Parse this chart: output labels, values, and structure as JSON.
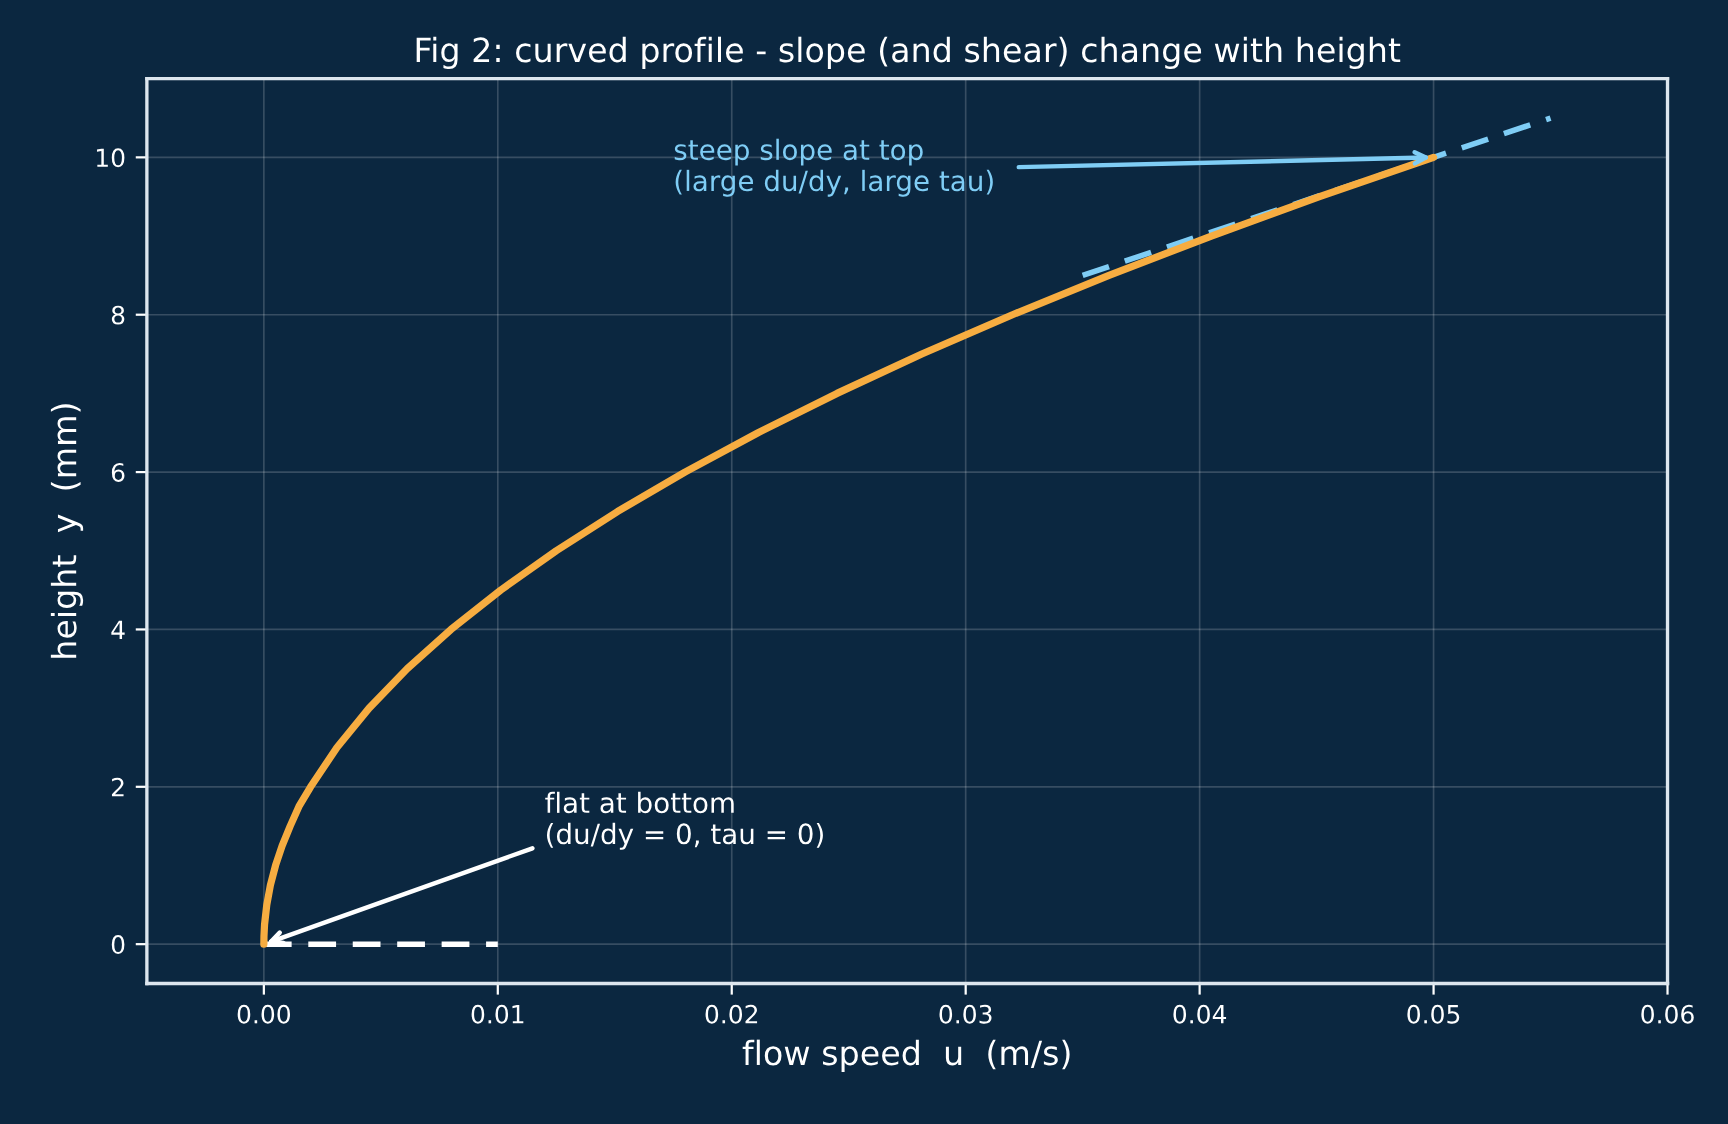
{
  "chart_data": {
    "type": "line",
    "title": "Fig 2: curved profile - slope (and shear) change with height",
    "xlabel": "flow speed  u  (m/s)",
    "ylabel": "height  y  (mm)",
    "series": [
      {
        "color": "#f7ad41",
        "line_style": "solid",
        "x": [
          0,
          5e-06,
          3e-05,
          0.000125,
          0.00028,
          0.0005,
          0.00078,
          0.001125,
          0.0015,
          0.002,
          0.003125,
          0.0045,
          0.006125,
          0.008,
          0.010125,
          0.0125,
          0.015125,
          0.018,
          0.021125,
          0.0245,
          0.028125,
          0.032,
          0.036125,
          0.0405,
          0.045125,
          0.05
        ],
        "values": [
          0,
          0.1,
          0.25,
          0.5,
          0.75,
          1,
          1.25,
          1.5,
          1.75,
          2,
          2.5,
          3,
          3.5,
          4,
          4.5,
          5,
          5.5,
          6,
          6.5,
          7,
          7.5,
          8,
          8.5,
          9,
          9.5,
          10
        ]
      },
      {
        "color": "#ffffff",
        "line_style": "dashed",
        "x": [
          0,
          0.01
        ],
        "values": [
          0,
          0
        ]
      },
      {
        "color": "#7fcdf5",
        "line_style": "dashed",
        "x": [
          0.035,
          0.055
        ],
        "values": [
          8.5,
          10.5
        ]
      }
    ],
    "annotations": [
      {
        "text": "flat at bottom\n(du/dy = 0, tau = 0)",
        "x": 0,
        "y": 0
      },
      {
        "text": "steep slope at top\n(large du/dy, large tau)",
        "x": 0.05,
        "y": 10
      }
    ],
    "xlim": [
      -0.005,
      0.06
    ],
    "ylim": [
      -0.5,
      11
    ],
    "xticks": [
      {
        "value": 0,
        "label": "0.00"
      },
      {
        "value": 0.01,
        "label": "0.01"
      },
      {
        "value": 0.02,
        "label": "0.02"
      },
      {
        "value": 0.03,
        "label": "0.03"
      },
      {
        "value": 0.04,
        "label": "0.04"
      },
      {
        "value": 0.05,
        "label": "0.05"
      },
      {
        "value": 0.06,
        "label": "0.06"
      }
    ],
    "yticks": [
      0,
      2,
      4,
      6,
      8,
      10
    ],
    "grid": true,
    "legend": false
  }
}
